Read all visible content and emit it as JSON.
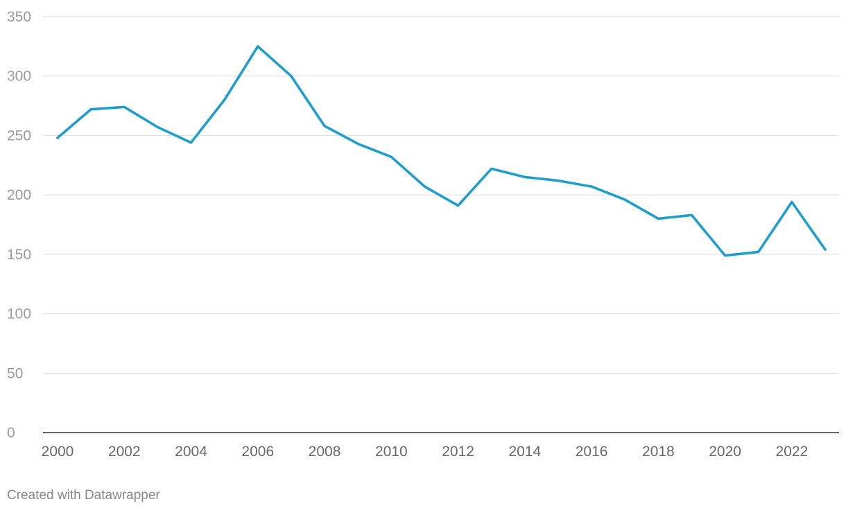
{
  "chart_data": {
    "type": "line",
    "title": "",
    "xlabel": "",
    "ylabel": "",
    "x": [
      2000,
      2001,
      2002,
      2003,
      2004,
      2005,
      2006,
      2007,
      2008,
      2009,
      2010,
      2011,
      2012,
      2013,
      2014,
      2015,
      2016,
      2017,
      2018,
      2019,
      2020,
      2021,
      2022,
      2023
    ],
    "series": [
      {
        "values": [
          248,
          272,
          274,
          257,
          244,
          280,
          325,
          300,
          258,
          243,
          232,
          207,
          191,
          222,
          215,
          212,
          207,
          196,
          180,
          183,
          149,
          152,
          194,
          154
        ],
        "color": "#1f9ecb"
      }
    ],
    "xticks": [
      "2000",
      "2002",
      "2004",
      "2006",
      "2008",
      "2010",
      "2012",
      "2014",
      "2016",
      "2018",
      "2020",
      "2022"
    ],
    "yticks": [
      "0",
      "50",
      "100",
      "150",
      "200",
      "250",
      "300",
      "350"
    ],
    "ylim": [
      0,
      350
    ],
    "xlim": [
      2000,
      2023
    ],
    "grid": true,
    "legend": "none"
  },
  "footer": {
    "credit": "Created with Datawrapper"
  }
}
